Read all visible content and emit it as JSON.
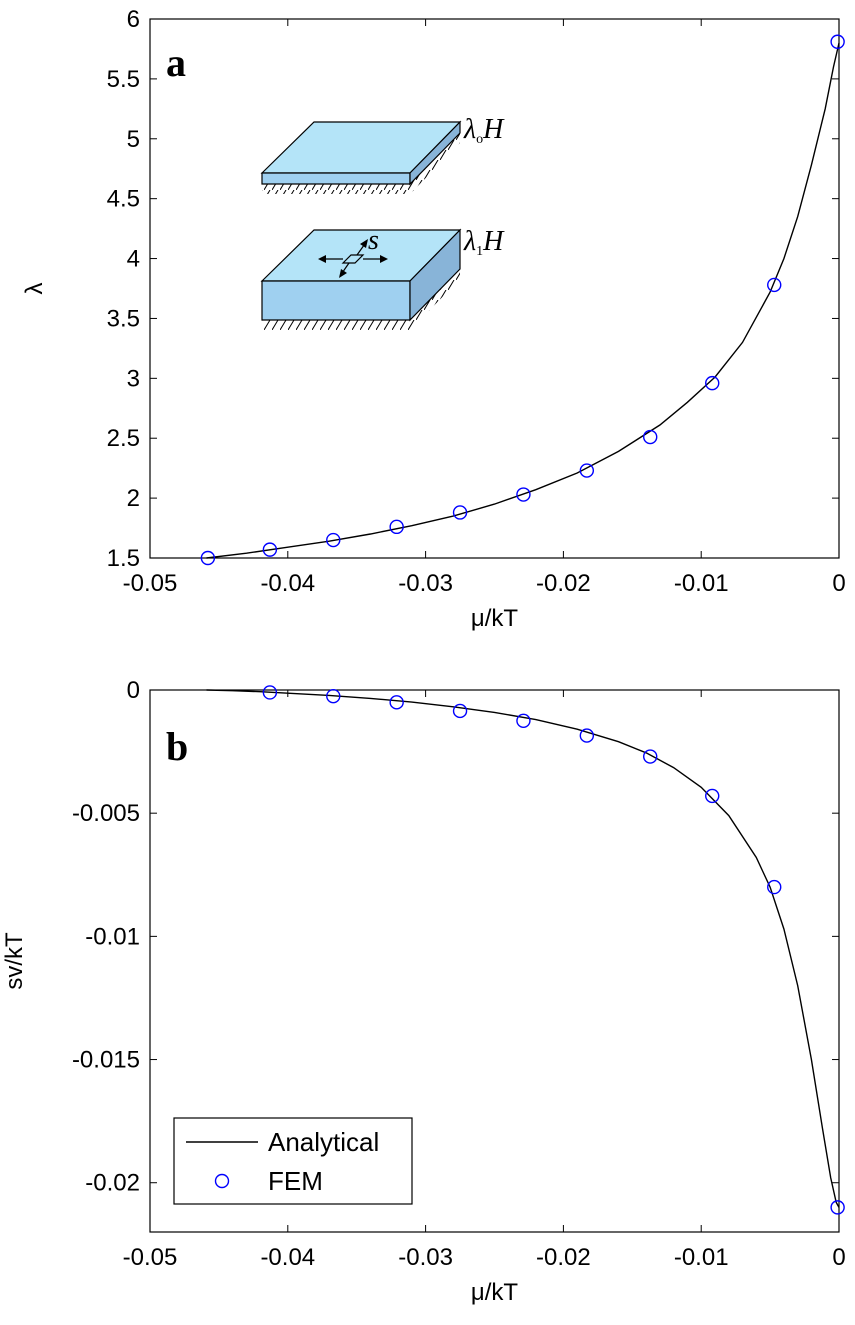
{
  "chart_data": [
    {
      "type": "line",
      "panel_label": "a",
      "xlabel": "μ/kT",
      "ylabel": "λ",
      "xlim": [
        -0.05,
        0
      ],
      "ylim": [
        1.5,
        6
      ],
      "xticks": [
        "-0.05",
        "-0.04",
        "-0.03",
        "-0.02",
        "-0.01",
        "0"
      ],
      "yticks": [
        "1.5",
        "2",
        "2.5",
        "3",
        "3.5",
        "4",
        "4.5",
        "5",
        "5.5",
        "6"
      ],
      "grid": false,
      "inset": {
        "top_label": {
          "lambda": "λ",
          "sub": "o",
          "h": "H"
        },
        "bottom_label": {
          "lambda": "λ",
          "sub": "1",
          "h": "H"
        },
        "s_label": "s"
      },
      "series": [
        {
          "name": "Analytical",
          "style": "line",
          "color": "#000000",
          "x": [
            -0.0459,
            -0.043,
            -0.04,
            -0.037,
            -0.034,
            -0.031,
            -0.028,
            -0.025,
            -0.022,
            -0.019,
            -0.016,
            -0.013,
            -0.011,
            -0.009,
            -0.007,
            -0.005,
            -0.004,
            -0.003,
            -0.002,
            -0.001,
            -0.0004,
            0
          ],
          "y": [
            1.5,
            1.54,
            1.59,
            1.64,
            1.7,
            1.77,
            1.85,
            1.95,
            2.07,
            2.21,
            2.39,
            2.61,
            2.8,
            3.01,
            3.3,
            3.72,
            4.0,
            4.35,
            4.78,
            5.25,
            5.6,
            5.8
          ]
        },
        {
          "name": "FEM",
          "style": "marker",
          "color": "#0000ff",
          "x": [
            -0.0458,
            -0.0413,
            -0.0367,
            -0.0321,
            -0.0275,
            -0.0229,
            -0.0183,
            -0.0137,
            -0.0092,
            -0.0047,
            -0.0001
          ],
          "y": [
            1.5,
            1.57,
            1.65,
            1.76,
            1.88,
            2.03,
            2.23,
            2.51,
            2.96,
            3.78,
            5.81
          ]
        }
      ]
    },
    {
      "type": "line",
      "panel_label": "b",
      "xlabel": "μ/kT",
      "ylabel": "sv/kT",
      "xlim": [
        -0.05,
        0
      ],
      "ylim": [
        -0.022,
        0
      ],
      "xticks": [
        "-0.05",
        "-0.04",
        "-0.03",
        "-0.02",
        "-0.01",
        "0"
      ],
      "yticks": [
        "0",
        "-0.005",
        "-0.01",
        "-0.015",
        "-0.02"
      ],
      "grid": false,
      "legend": {
        "placement": "bottom-left",
        "entries": [
          "Analytical",
          "FEM"
        ]
      },
      "series": [
        {
          "name": "Analytical",
          "style": "line",
          "color": "#000000",
          "x": [
            -0.0459,
            -0.044,
            -0.042,
            -0.04,
            -0.037,
            -0.034,
            -0.031,
            -0.028,
            -0.025,
            -0.022,
            -0.019,
            -0.016,
            -0.014,
            -0.012,
            -0.01,
            -0.008,
            -0.006,
            -0.005,
            -0.004,
            -0.003,
            -0.002,
            -0.0012,
            -0.0006,
            -0.0002,
            0
          ],
          "y": [
            0,
            -3e-05,
            -7e-05,
            -0.00013,
            -0.00022,
            -0.00034,
            -0.00049,
            -0.00068,
            -0.00091,
            -0.0012,
            -0.00159,
            -0.0021,
            -0.00255,
            -0.00315,
            -0.00395,
            -0.0051,
            -0.0068,
            -0.008,
            -0.0097,
            -0.012,
            -0.015,
            -0.0178,
            -0.0198,
            -0.0208,
            -0.021
          ]
        },
        {
          "name": "FEM",
          "style": "marker",
          "color": "#0000ff",
          "x": [
            -0.0413,
            -0.0367,
            -0.0321,
            -0.0275,
            -0.0229,
            -0.0183,
            -0.0137,
            -0.0092,
            -0.0047,
            -0.0001
          ],
          "y": [
            -0.0001,
            -0.00025,
            -0.0005,
            -0.00085,
            -0.00125,
            -0.00185,
            -0.0027,
            -0.0043,
            -0.008,
            -0.021
          ]
        }
      ]
    }
  ]
}
